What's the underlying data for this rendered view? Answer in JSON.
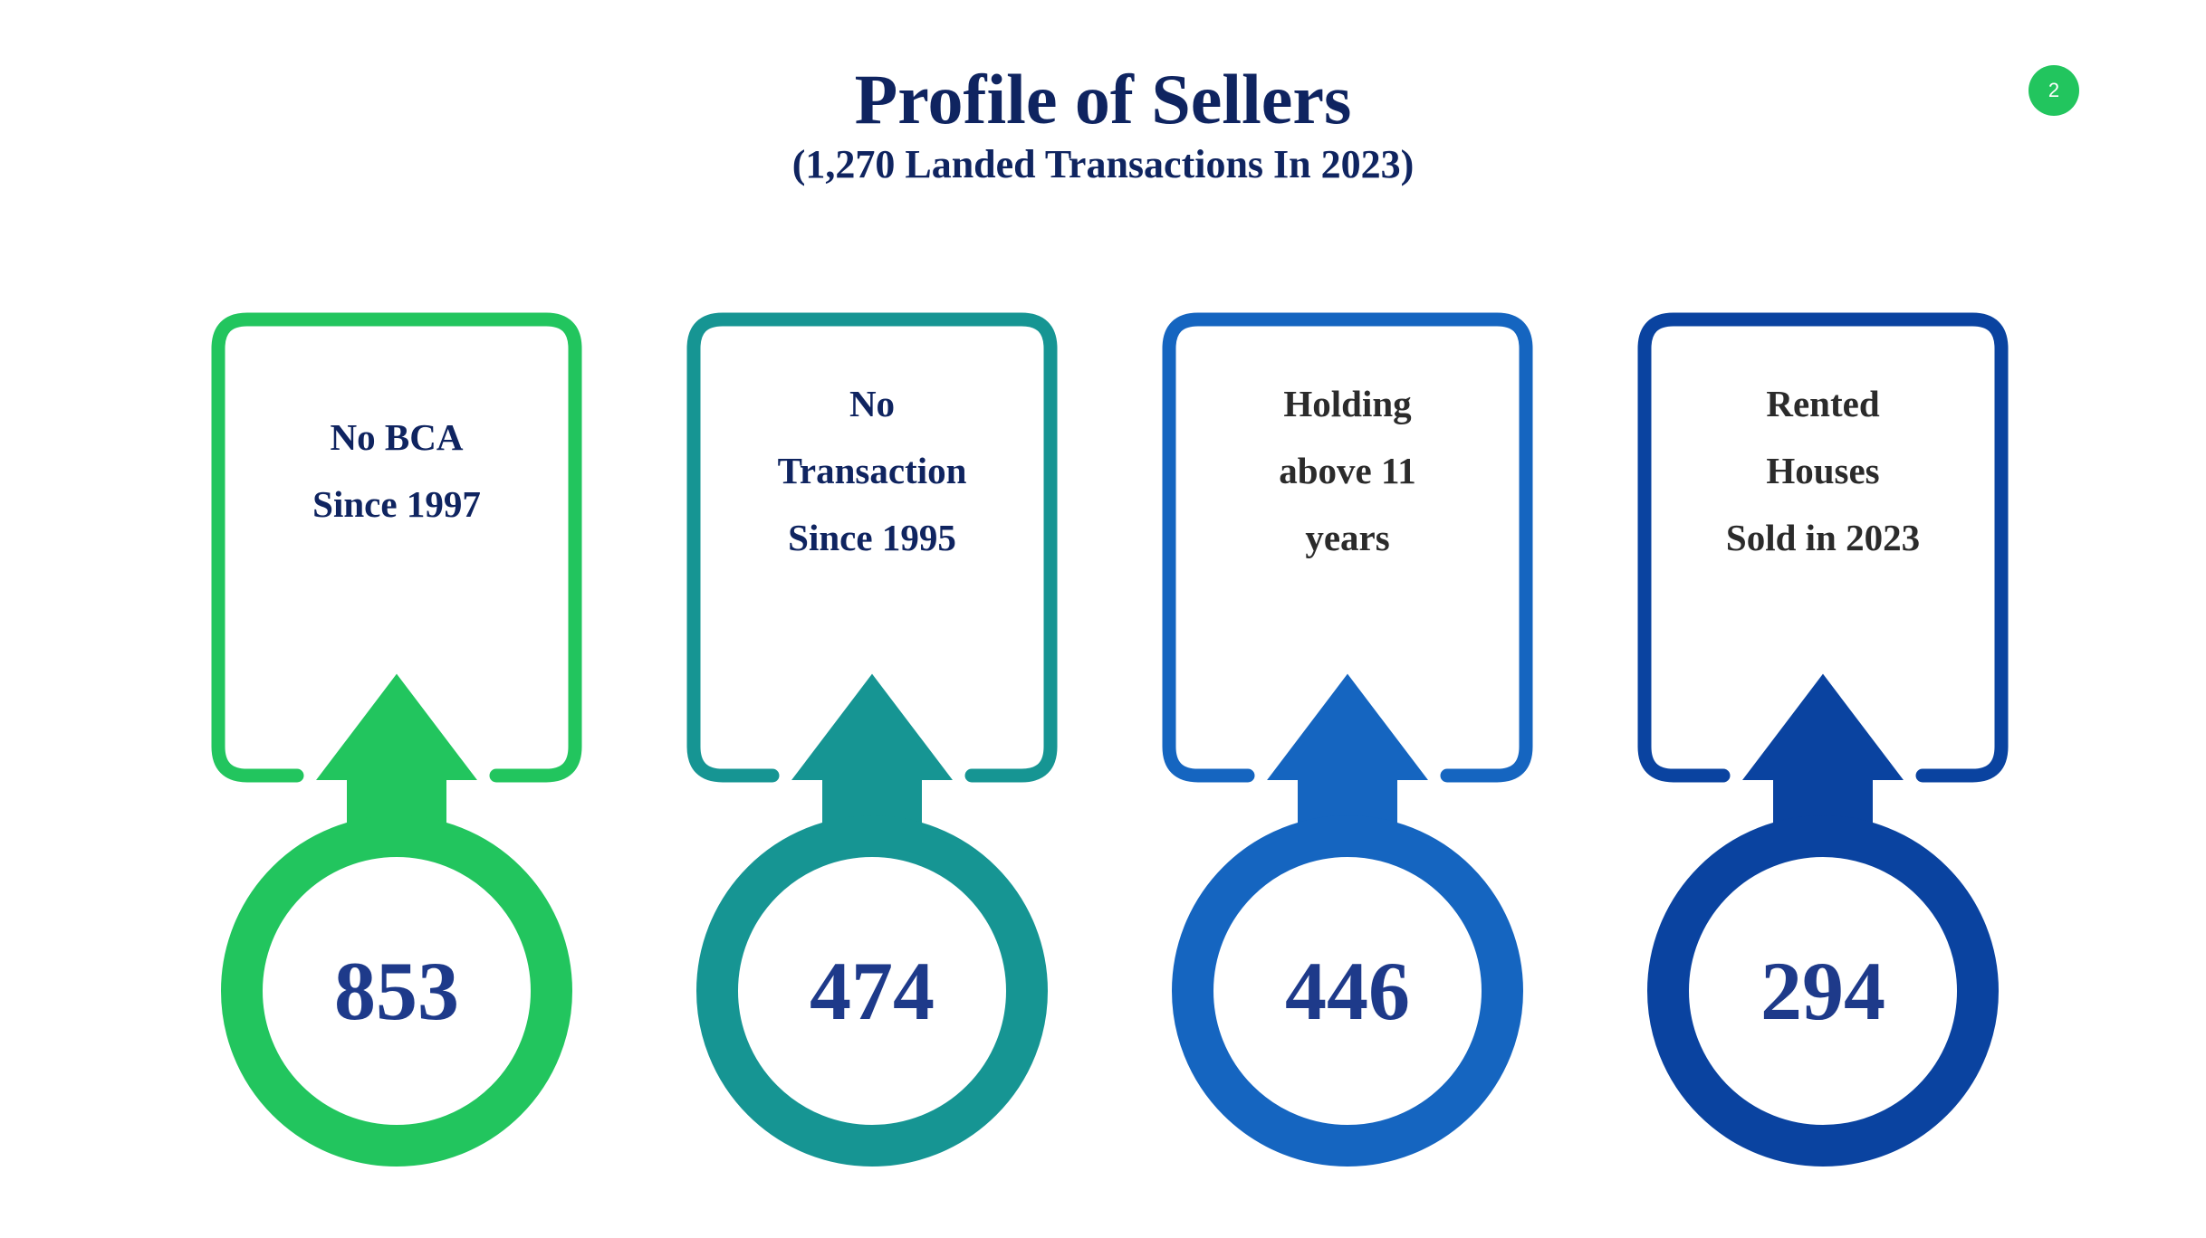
{
  "header": {
    "title": "Profile of Sellers",
    "subtitle": "(1,270 Landed Transactions In 2023)"
  },
  "page_number": "2",
  "colors": {
    "title": "#0f2460",
    "badge": "#22c55e",
    "card_1": "#22c55e",
    "card_2": "#169593",
    "card_3": "#1565c0",
    "card_4": "#0a43a0",
    "label_dark_blue": "#0f2460",
    "label_dark_gray": "#2b2b2b",
    "value": "#1e3a8a"
  },
  "cards": [
    {
      "label": "No BCA\nSince 1997",
      "value": "853",
      "icon": "up-arrow-icon",
      "label_color": "label_dark_blue",
      "color": "card_1"
    },
    {
      "label": "No\nTransaction\nSince 1995",
      "value": "474",
      "icon": "up-arrow-icon",
      "label_color": "label_dark_blue",
      "color": "card_2"
    },
    {
      "label": "Holding\nabove 11\nyears",
      "value": "446",
      "icon": "up-arrow-icon",
      "label_color": "label_dark_gray",
      "color": "card_3"
    },
    {
      "label": "Rented\nHouses\nSold in 2023",
      "value": "294",
      "icon": "up-arrow-icon",
      "label_color": "label_dark_gray",
      "color": "card_4"
    }
  ]
}
